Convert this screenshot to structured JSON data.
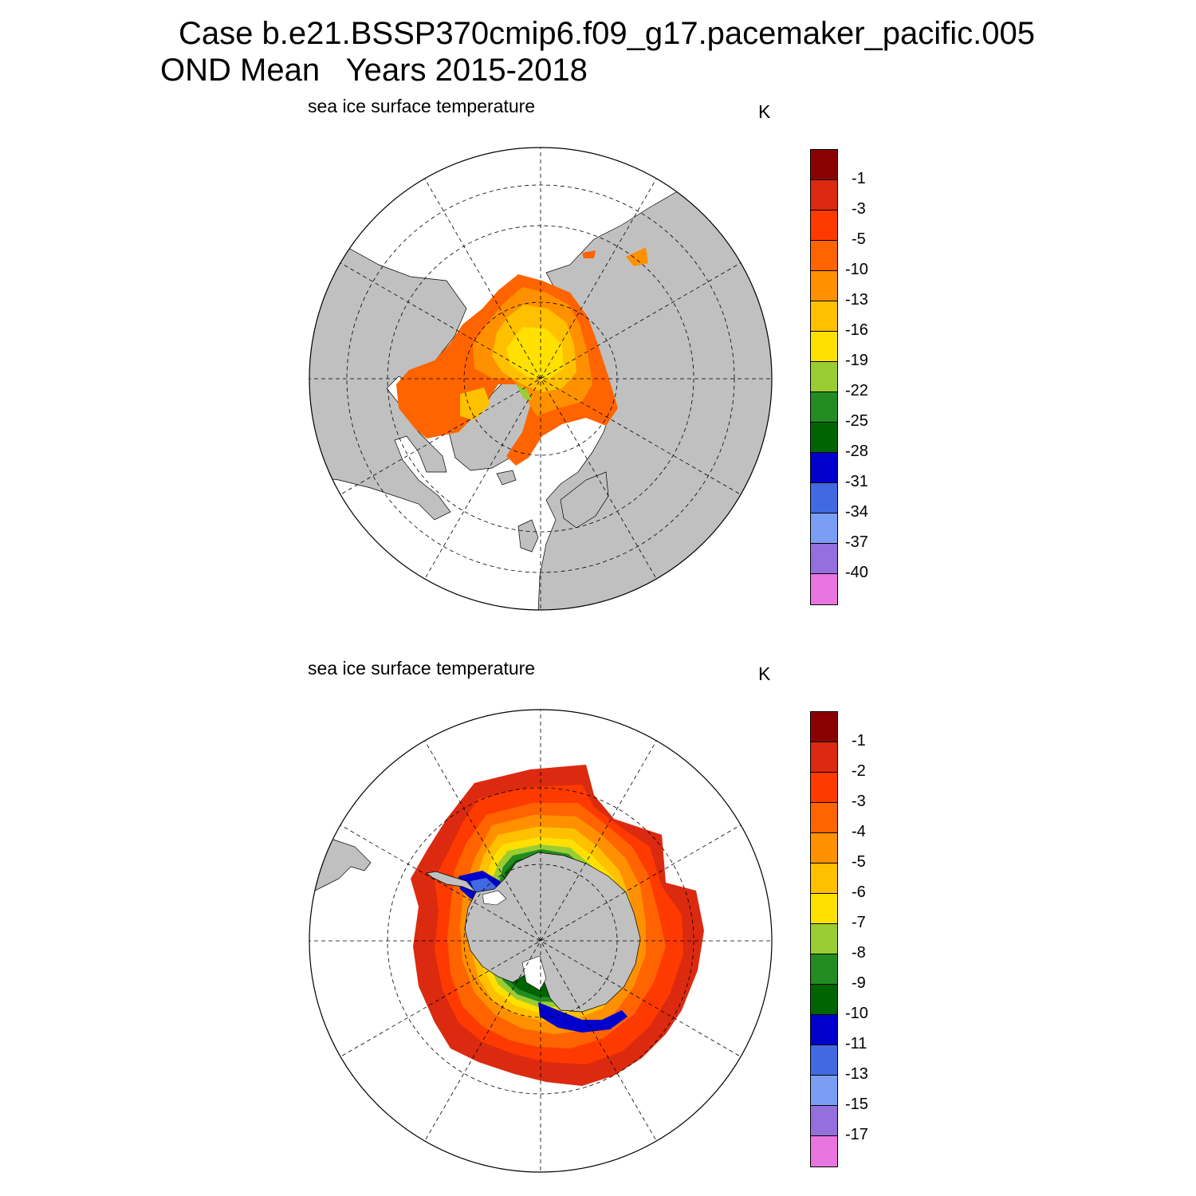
{
  "title_line1": "Case b.e21.BSSP370cmip6.f09_g17.pacemaker_pacific.005",
  "title_line2": "OND Mean   Years 2015-2018",
  "panels": [
    {
      "hemisphere": "north",
      "title": "sea ice surface temperature",
      "units": "K",
      "colorbar": {
        "colors": [
          "#8b0000",
          "#db2a10",
          "#ff3a00",
          "#ff6400",
          "#ff9000",
          "#ffc000",
          "#ffe000",
          "#9acd32",
          "#228b22",
          "#006400",
          "#0000cd",
          "#4169e1",
          "#7b9ef5",
          "#9370db",
          "#e875e0"
        ],
        "labels": [
          "-1",
          "-3",
          "-5",
          "-10",
          "-13",
          "-16",
          "-19",
          "-22",
          "-25",
          "-28",
          "-31",
          "-34",
          "-37",
          "-40"
        ]
      }
    },
    {
      "hemisphere": "south",
      "title": "sea ice surface temperature",
      "units": "K",
      "colorbar": {
        "colors": [
          "#8b0000",
          "#db2a10",
          "#ff3a00",
          "#ff6400",
          "#ff9000",
          "#ffc000",
          "#ffe000",
          "#9acd32",
          "#228b22",
          "#006400",
          "#0000cd",
          "#4169e1",
          "#7b9ef5",
          "#9370db",
          "#e875e0"
        ],
        "labels": [
          "-1",
          "-2",
          "-3",
          "-4",
          "-5",
          "-6",
          "-7",
          "-8",
          "-9",
          "-10",
          "-11",
          "-13",
          "-15",
          "-17"
        ]
      }
    }
  ],
  "map_colors": {
    "land": "#c0c0c0",
    "ocean": "#ffffff"
  }
}
